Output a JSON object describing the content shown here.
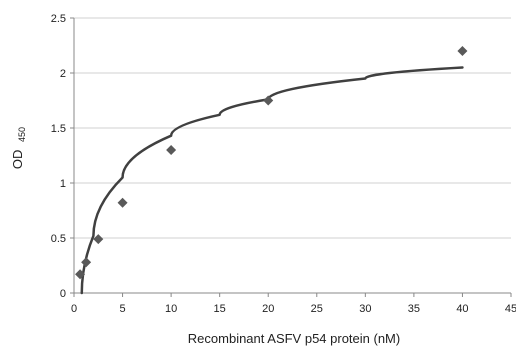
{
  "chart_data": {
    "type": "scatter",
    "xlabel": "Recombinant ASFV p54 protein (nM)",
    "ylabel": "OD",
    "ylabel_subscript": "450",
    "xlim": [
      0,
      45
    ],
    "ylim": [
      0,
      2.5
    ],
    "x_ticks": [
      0,
      5,
      10,
      15,
      20,
      25,
      30,
      35,
      40,
      45
    ],
    "y_ticks": [
      0,
      0.5,
      1,
      1.5,
      2,
      2.5
    ],
    "x_tick_labels": [
      "0",
      "5",
      "10",
      "15",
      "20",
      "25",
      "30",
      "35",
      "40",
      "45"
    ],
    "y_tick_labels": [
      "0",
      "0.5",
      "1",
      "1.5",
      "2",
      "2.5"
    ],
    "grid": "horizontal",
    "legend": "none",
    "series": [
      {
        "marker": "diamond",
        "color": "#595959",
        "x": [
          0.625,
          1.25,
          2.5,
          5,
          10,
          20,
          40
        ],
        "y": [
          0.17,
          0.28,
          0.49,
          0.82,
          1.3,
          1.75,
          2.2
        ]
      }
    ],
    "trendline": {
      "type": "logarithmic",
      "color": "#404040",
      "x_start": 0.8,
      "x_end": 40,
      "y_at_x": [
        [
          0.8,
          0.0
        ],
        [
          2,
          0.52
        ],
        [
          5,
          1.05
        ],
        [
          10,
          1.43
        ],
        [
          15,
          1.62
        ],
        [
          20,
          1.76
        ],
        [
          30,
          1.95
        ],
        [
          40,
          2.05
        ]
      ]
    }
  }
}
